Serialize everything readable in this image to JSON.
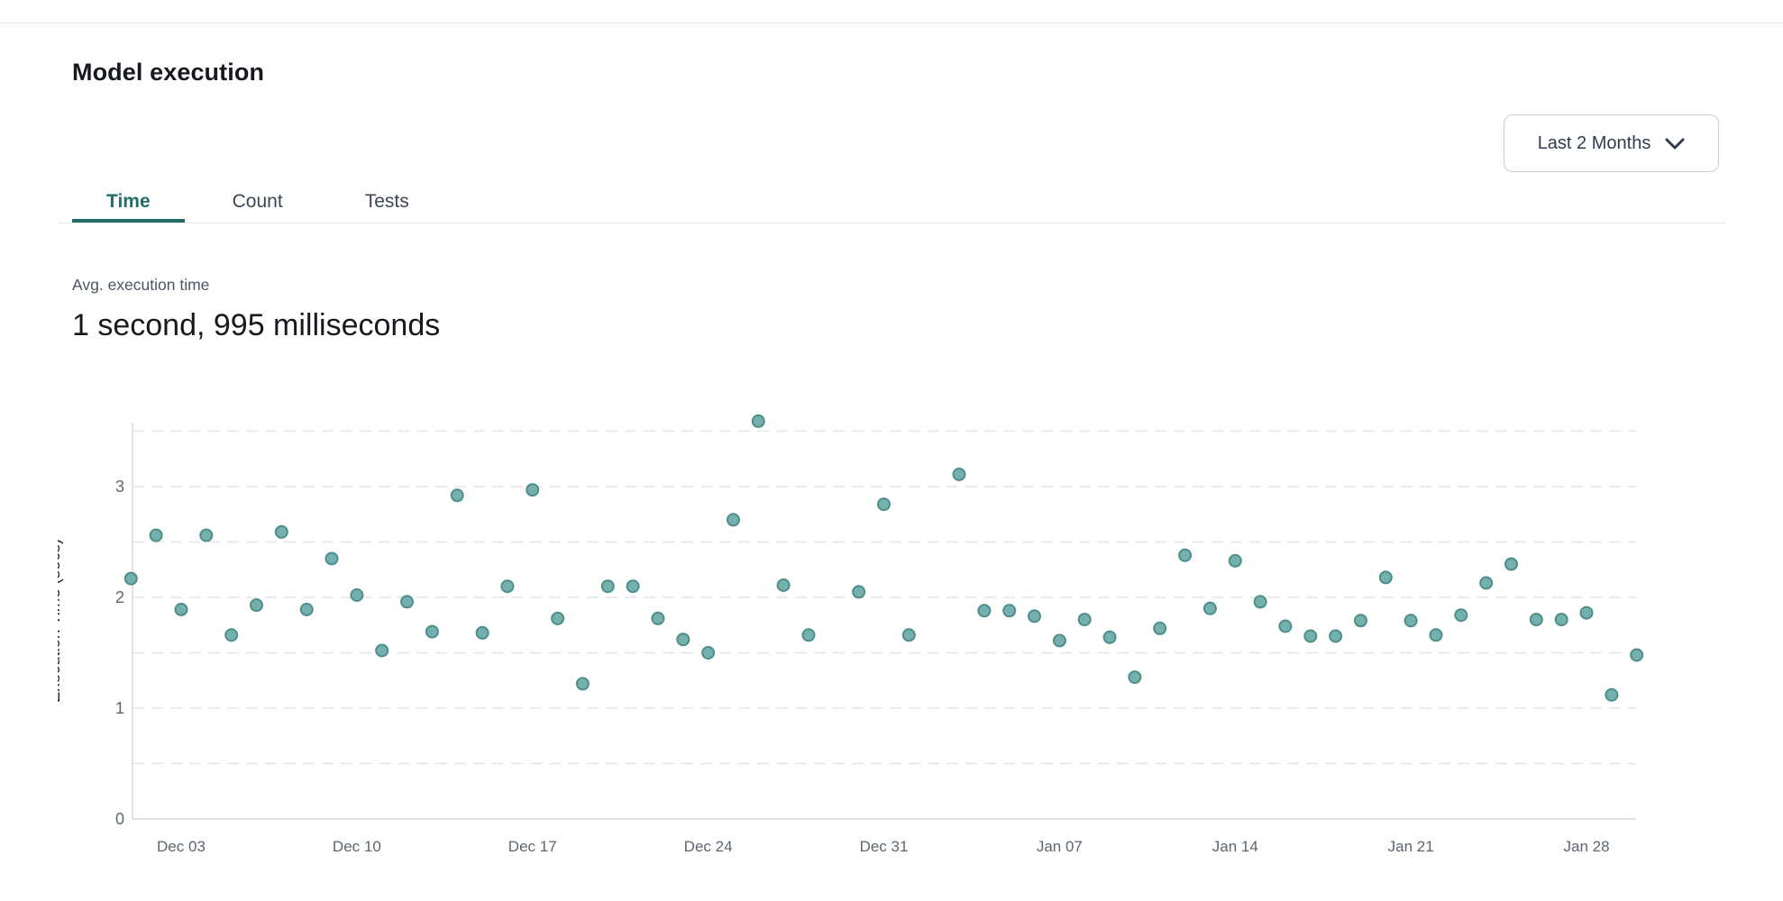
{
  "page": {
    "title": "Model execution"
  },
  "header": {
    "range_selector": {
      "label": "Last 2 Months",
      "icon": "chevron-down-icon"
    }
  },
  "tabs": [
    {
      "label": "Time",
      "active": true
    },
    {
      "label": "Count",
      "active": false
    },
    {
      "label": "Tests",
      "active": false
    }
  ],
  "stat": {
    "label": "Avg. execution time",
    "value": "1 second, 995 milliseconds"
  },
  "colors": {
    "accent_teal": "#236c6c",
    "point_fill": "#74b1ae",
    "point_stroke": "#4d8e8b",
    "grid_line": "#e4e4ea",
    "axis_line": "#d7d8de",
    "tick_text": "#5c6572"
  },
  "chart_data": {
    "type": "scatter",
    "title": "",
    "xlabel": "",
    "ylabel": "Execution Time (secs)",
    "ylim": [
      0,
      3.6
    ],
    "y_ticks": [
      0,
      1,
      2,
      3
    ],
    "grid": "horizontal dashed every 0.5",
    "legend": "none",
    "x_ticks": [
      {
        "label": "Dec 03",
        "day": 2
      },
      {
        "label": "Dec 10",
        "day": 9
      },
      {
        "label": "Dec 17",
        "day": 16
      },
      {
        "label": "Dec 24",
        "day": 23
      },
      {
        "label": "Dec 31",
        "day": 30
      },
      {
        "label": "Jan 07",
        "day": 37
      },
      {
        "label": "Jan 14",
        "day": 44
      },
      {
        "label": "Jan 21",
        "day": 51
      },
      {
        "label": "Jan 28",
        "day": 58
      }
    ],
    "points": [
      {
        "date": "Dec 01",
        "day": 0,
        "secs": 2.17
      },
      {
        "date": "Dec 02",
        "day": 1,
        "secs": 2.56
      },
      {
        "date": "Dec 03",
        "day": 2,
        "secs": 1.89
      },
      {
        "date": "Dec 04",
        "day": 3,
        "secs": 2.56
      },
      {
        "date": "Dec 05",
        "day": 4,
        "secs": 1.66
      },
      {
        "date": "Dec 06",
        "day": 5,
        "secs": 1.93
      },
      {
        "date": "Dec 07",
        "day": 6,
        "secs": 2.59
      },
      {
        "date": "Dec 08",
        "day": 7,
        "secs": 1.89
      },
      {
        "date": "Dec 09",
        "day": 8,
        "secs": 2.35
      },
      {
        "date": "Dec 10",
        "day": 9,
        "secs": 2.02
      },
      {
        "date": "Dec 11",
        "day": 10,
        "secs": 1.52
      },
      {
        "date": "Dec 12",
        "day": 11,
        "secs": 1.96
      },
      {
        "date": "Dec 13",
        "day": 12,
        "secs": 1.69
      },
      {
        "date": "Dec 14",
        "day": 13,
        "secs": 2.92
      },
      {
        "date": "Dec 15",
        "day": 14,
        "secs": 1.68
      },
      {
        "date": "Dec 16",
        "day": 15,
        "secs": 2.1
      },
      {
        "date": "Dec 17",
        "day": 16,
        "secs": 2.97
      },
      {
        "date": "Dec 18",
        "day": 17,
        "secs": 1.81
      },
      {
        "date": "Dec 19",
        "day": 18,
        "secs": 1.22
      },
      {
        "date": "Dec 20",
        "day": 19,
        "secs": 2.1
      },
      {
        "date": "Dec 21",
        "day": 20,
        "secs": 2.1
      },
      {
        "date": "Dec 22",
        "day": 21,
        "secs": 1.81
      },
      {
        "date": "Dec 23",
        "day": 22,
        "secs": 1.62
      },
      {
        "date": "Dec 24",
        "day": 23,
        "secs": 1.5
      },
      {
        "date": "Dec 25",
        "day": 24,
        "secs": 2.7
      },
      {
        "date": "Dec 26",
        "day": 25,
        "secs": 3.59
      },
      {
        "date": "Dec 27",
        "day": 26,
        "secs": 2.11
      },
      {
        "date": "Dec 28",
        "day": 27,
        "secs": 1.66
      },
      {
        "date": "Dec 30",
        "day": 29,
        "secs": 2.05
      },
      {
        "date": "Dec 31",
        "day": 30,
        "secs": 2.84
      },
      {
        "date": "Jan 01",
        "day": 31,
        "secs": 1.66
      },
      {
        "date": "Jan 03",
        "day": 33,
        "secs": 3.11
      },
      {
        "date": "Jan 04",
        "day": 34,
        "secs": 1.88
      },
      {
        "date": "Jan 05",
        "day": 35,
        "secs": 1.88
      },
      {
        "date": "Jan 06",
        "day": 36,
        "secs": 1.83
      },
      {
        "date": "Jan 07",
        "day": 37,
        "secs": 1.61
      },
      {
        "date": "Jan 08",
        "day": 38,
        "secs": 1.8
      },
      {
        "date": "Jan 09",
        "day": 39,
        "secs": 1.64
      },
      {
        "date": "Jan 10",
        "day": 40,
        "secs": 1.28
      },
      {
        "date": "Jan 11",
        "day": 41,
        "secs": 1.72
      },
      {
        "date": "Jan 12",
        "day": 42,
        "secs": 2.38
      },
      {
        "date": "Jan 13",
        "day": 43,
        "secs": 1.9
      },
      {
        "date": "Jan 14",
        "day": 44,
        "secs": 2.33
      },
      {
        "date": "Jan 15",
        "day": 45,
        "secs": 1.96
      },
      {
        "date": "Jan 16",
        "day": 46,
        "secs": 1.74
      },
      {
        "date": "Jan 17",
        "day": 47,
        "secs": 1.65
      },
      {
        "date": "Jan 18",
        "day": 48,
        "secs": 1.65
      },
      {
        "date": "Jan 19",
        "day": 49,
        "secs": 1.79
      },
      {
        "date": "Jan 20",
        "day": 50,
        "secs": 2.18
      },
      {
        "date": "Jan 21",
        "day": 51,
        "secs": 1.79
      },
      {
        "date": "Jan 22",
        "day": 52,
        "secs": 1.66
      },
      {
        "date": "Jan 23",
        "day": 53,
        "secs": 1.84
      },
      {
        "date": "Jan 24",
        "day": 54,
        "secs": 2.13
      },
      {
        "date": "Jan 25",
        "day": 55,
        "secs": 2.3
      },
      {
        "date": "Jan 26",
        "day": 56,
        "secs": 1.8
      },
      {
        "date": "Jan 27",
        "day": 57,
        "secs": 1.8
      },
      {
        "date": "Jan 28",
        "day": 58,
        "secs": 1.86
      },
      {
        "date": "Jan 29",
        "day": 59,
        "secs": 1.12
      },
      {
        "date": "Jan 30",
        "day": 60,
        "secs": 1.48
      }
    ]
  }
}
